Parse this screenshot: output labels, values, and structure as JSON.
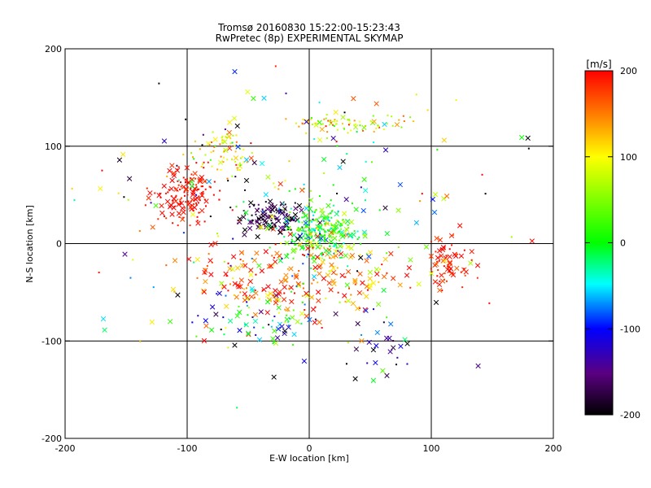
{
  "chart_data": {
    "type": "scatter",
    "title": "Tromsø 20160830 15:22:00-15:23:43",
    "subtitle": "RwPretec (8p) EXPERIMENTAL SKYMAP",
    "xlabel": "E-W location [km]",
    "ylabel": "N-S location [km]",
    "xlim": [
      -200,
      200
    ],
    "ylim": [
      -200,
      200
    ],
    "xticks": [
      "-200",
      "-100",
      "0",
      "100",
      "200"
    ],
    "yticks": [
      "-200",
      "-100",
      "0",
      "100",
      "200"
    ],
    "grid": true,
    "colorbar": {
      "label": "[m/s]",
      "range": [
        -200,
        200
      ],
      "ticks": [
        "-200",
        "-100",
        "0",
        "100",
        "200"
      ],
      "colors": [
        "#000000",
        "#5a0080",
        "#0000ff",
        "#00ffff",
        "#00ff00",
        "#ffff00",
        "#ff8000",
        "#ff0000"
      ]
    },
    "clusters": [
      {
        "x": -30,
        "y": 28,
        "sx": 14,
        "sy": 9,
        "v": -180,
        "sv": 25,
        "n": 110,
        "crossFrac": 0.55
      },
      {
        "x": 8,
        "y": 12,
        "sx": 16,
        "sy": 14,
        "v": 10,
        "sv": 45,
        "n": 300,
        "crossFrac": 0.2
      },
      {
        "x": -100,
        "y": 50,
        "sx": 12,
        "sy": 15,
        "v": 195,
        "sv": 10,
        "n": 150,
        "crossFrac": 0.35
      },
      {
        "x": -70,
        "y": 95,
        "sx": 12,
        "sy": 12,
        "v": 110,
        "sv": 40,
        "n": 70,
        "crossFrac": 0.2
      },
      {
        "x": 35,
        "y": 125,
        "sx": 25,
        "sy": 5,
        "v": 95,
        "sv": 45,
        "n": 80,
        "crossFrac": 0.1
      },
      {
        "x": 115,
        "y": -20,
        "sx": 10,
        "sy": 12,
        "v": 190,
        "sv": 15,
        "n": 70,
        "crossFrac": 0.45
      },
      {
        "x": -40,
        "y": -40,
        "sx": 30,
        "sy": 22,
        "v": 170,
        "sv": 50,
        "n": 130,
        "crossFrac": 0.7
      },
      {
        "x": 30,
        "y": -40,
        "sx": 25,
        "sy": 20,
        "v": 160,
        "sv": 60,
        "n": 100,
        "crossFrac": 0.7
      },
      {
        "x": -40,
        "y": -80,
        "sx": 25,
        "sy": 12,
        "v": -30,
        "sv": 80,
        "n": 70,
        "crossFrac": 0.5
      },
      {
        "x": 60,
        "y": -110,
        "sx": 12,
        "sy": 15,
        "v": -150,
        "sv": 50,
        "n": 25,
        "crossFrac": 0.9
      },
      {
        "x": 0,
        "y": 30,
        "sx": 90,
        "sy": 75,
        "v": 0,
        "sv": 140,
        "n": 220,
        "crossFrac": 0.5
      }
    ]
  }
}
